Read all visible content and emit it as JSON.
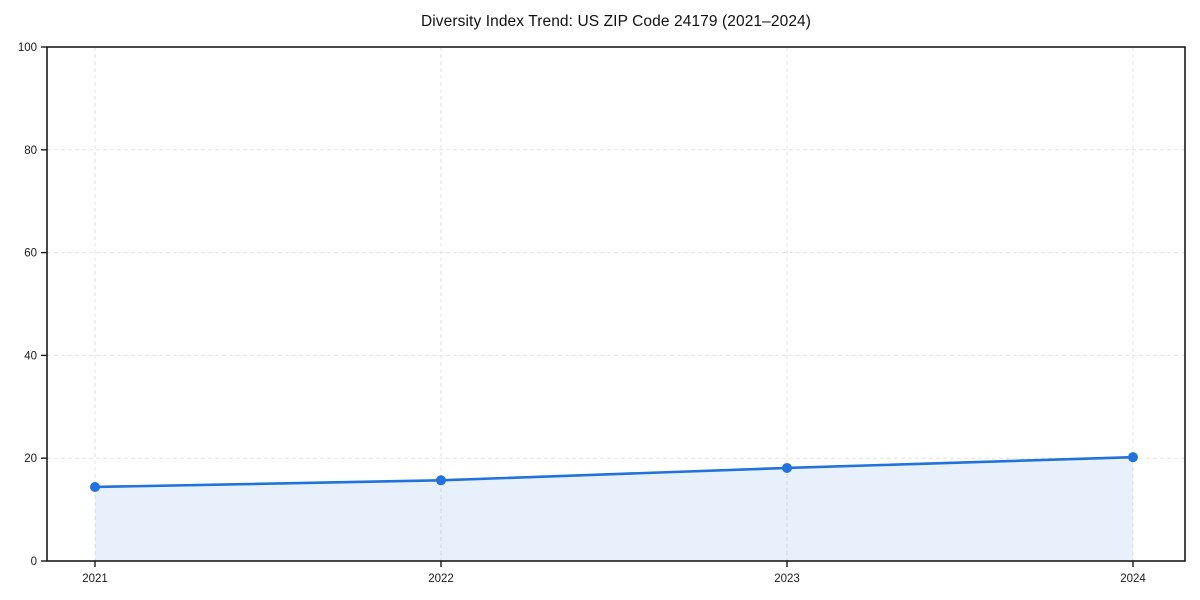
{
  "chart_data": {
    "type": "line",
    "title": "Diversity Index Trend: US ZIP Code 24179 (2021–2024)",
    "x": [
      "2021",
      "2022",
      "2023",
      "2024"
    ],
    "series": [
      {
        "name": "Diversity Index",
        "values": [
          14.4,
          15.7,
          18.1,
          20.2
        ]
      }
    ],
    "xlabel": "",
    "ylabel": "",
    "ylim": [
      0,
      100
    ],
    "yticks": [
      0,
      20,
      40,
      60,
      80,
      100
    ],
    "grid": "dashed, horizontal at y-ticks and vertical at x-ticks",
    "legend": "none",
    "area_fill": true,
    "marker": "circle",
    "colors": {
      "line": "#2272db",
      "marker": "#2272db",
      "fill": "rgba(34,114,219,0.11)",
      "grid": "#e3e3e3",
      "spine": "#1a1a1a",
      "text": "#1a1a1a",
      "background": "#ffffff"
    }
  }
}
